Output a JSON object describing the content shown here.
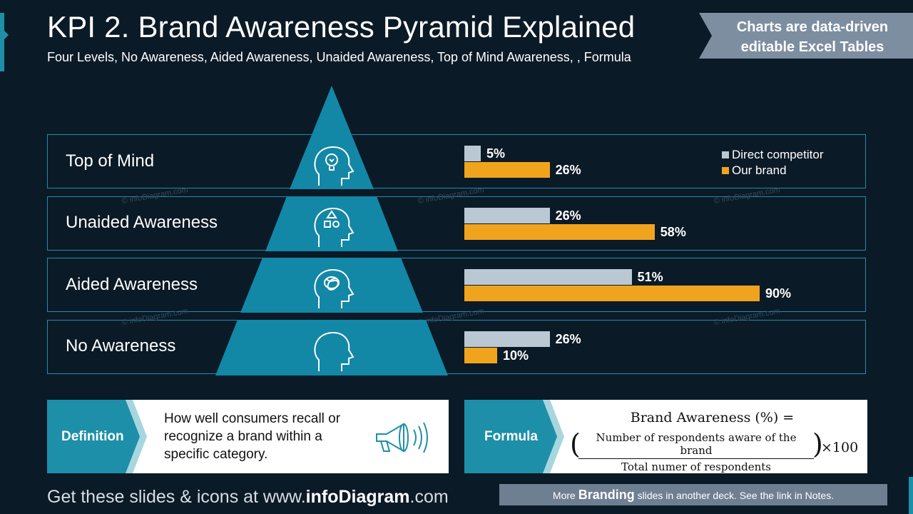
{
  "header": {
    "title": "KPI 2. Brand Awareness Pyramid Explained",
    "subtitle": "Four Levels, No Awareness, Aided Awareness, Unaided Awareness, Top of Mind Awareness, , Formula",
    "ribbon_line1": "Charts are data-driven",
    "ribbon_line2": "editable Excel Tables"
  },
  "levels": [
    {
      "label": "Top of Mind",
      "icon": "head-lightbulb-icon"
    },
    {
      "label": "Unaided Awareness",
      "icon": "head-shapes-icon"
    },
    {
      "label": "Aided Awareness",
      "icon": "head-scribble-icon"
    },
    {
      "label": "No Awareness",
      "icon": "head-empty-icon"
    }
  ],
  "chart_data": {
    "type": "bar",
    "orientation": "horizontal",
    "categories": [
      "Top of Mind",
      "Unaided Awareness",
      "Aided Awareness",
      "No Awareness"
    ],
    "series": [
      {
        "name": "Direct competitor",
        "values": [
          5,
          26,
          51,
          26
        ],
        "labels": [
          "5%",
          "26%",
          "51%",
          "26%"
        ],
        "color": "#b9c8d3"
      },
      {
        "name": "Our brand",
        "values": [
          26,
          58,
          90,
          10
        ],
        "labels": [
          "26%",
          "58%",
          "90%",
          "10%"
        ],
        "color": "#f0a41e"
      }
    ],
    "xlim": [
      0,
      100
    ],
    "legend": "top-right"
  },
  "definition": {
    "tag": "Definition",
    "text": "How well consumers recall or recognize a brand within a specific category.",
    "icon": "megaphone-icon"
  },
  "formula": {
    "tag": "Formula",
    "head": "Brand Awareness (%) =",
    "numerator": "Number of respondents aware of the brand",
    "denominator": "Total numer of respondents",
    "multiplier": "×100"
  },
  "watermark": "© infoDiagram.com",
  "footer": {
    "prefix": "Get these slides & icons at www.",
    "brand": "infoDiagram",
    "suffix": ".com"
  },
  "note": {
    "prefix": "More ",
    "bold": "Branding",
    "suffix": " slides in another deck. See the link in Notes."
  },
  "colors": {
    "accent": "#1e8fa8",
    "background": "#0b1a27",
    "competitor": "#b9c8d3",
    "our_brand": "#f0a41e"
  }
}
